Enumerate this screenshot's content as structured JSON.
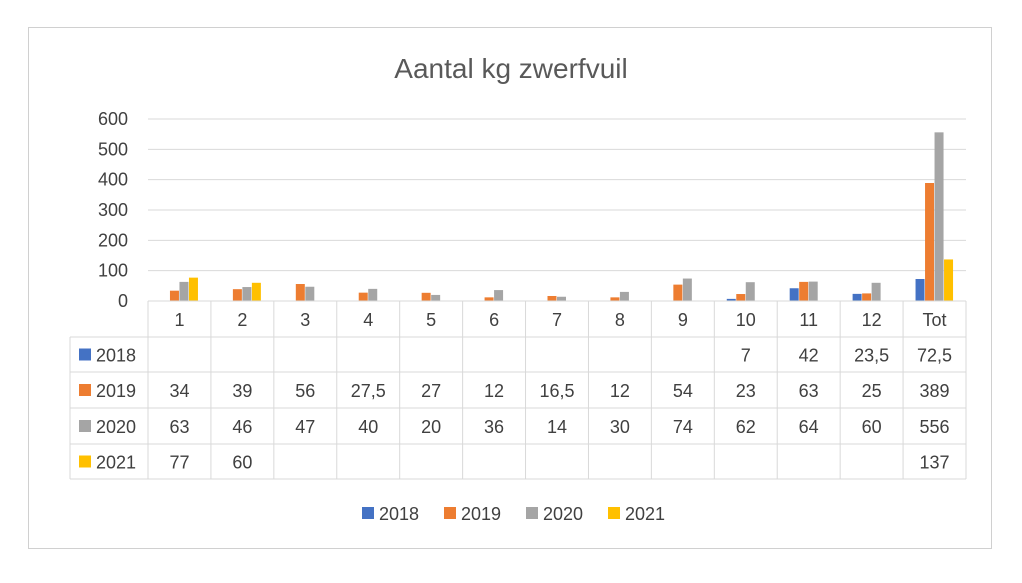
{
  "chart_data": {
    "type": "bar",
    "title": "Aantal kg zwerfvuil",
    "categories": [
      "1",
      "2",
      "3",
      "4",
      "5",
      "6",
      "7",
      "8",
      "9",
      "10",
      "11",
      "12",
      "Tot"
    ],
    "ylim": [
      0,
      600
    ],
    "yticks": [
      0,
      100,
      200,
      300,
      400,
      500,
      600
    ],
    "grid": true,
    "legend_position": "bottom",
    "series": [
      {
        "name": "2018",
        "color": "#4472C4",
        "values": [
          null,
          null,
          null,
          null,
          null,
          null,
          null,
          null,
          null,
          7,
          42,
          23.5,
          72.5
        ],
        "labels": [
          "",
          "",
          "",
          "",
          "",
          "",
          "",
          "",
          "",
          "7",
          "42",
          "23,5",
          "72,5"
        ]
      },
      {
        "name": "2019",
        "color": "#ED7D31",
        "values": [
          34,
          39,
          56,
          27.5,
          27,
          12,
          16.5,
          12,
          54,
          23,
          63,
          25,
          389
        ],
        "labels": [
          "34",
          "39",
          "56",
          "27,5",
          "27",
          "12",
          "16,5",
          "12",
          "54",
          "23",
          "63",
          "25",
          "389"
        ]
      },
      {
        "name": "2020",
        "color": "#A5A5A5",
        "values": [
          63,
          46,
          47,
          40,
          20,
          36,
          14,
          30,
          74,
          62,
          64,
          60,
          556
        ],
        "labels": [
          "63",
          "46",
          "47",
          "40",
          "20",
          "36",
          "14",
          "30",
          "74",
          "62",
          "64",
          "60",
          "556"
        ]
      },
      {
        "name": "2021",
        "color": "#FFC000",
        "values": [
          77,
          60,
          null,
          null,
          null,
          null,
          null,
          null,
          null,
          null,
          null,
          null,
          137
        ],
        "labels": [
          "77",
          "60",
          "",
          "",
          "",
          "",
          "",
          "",
          "",
          "",
          "",
          "",
          "137"
        ]
      }
    ]
  }
}
